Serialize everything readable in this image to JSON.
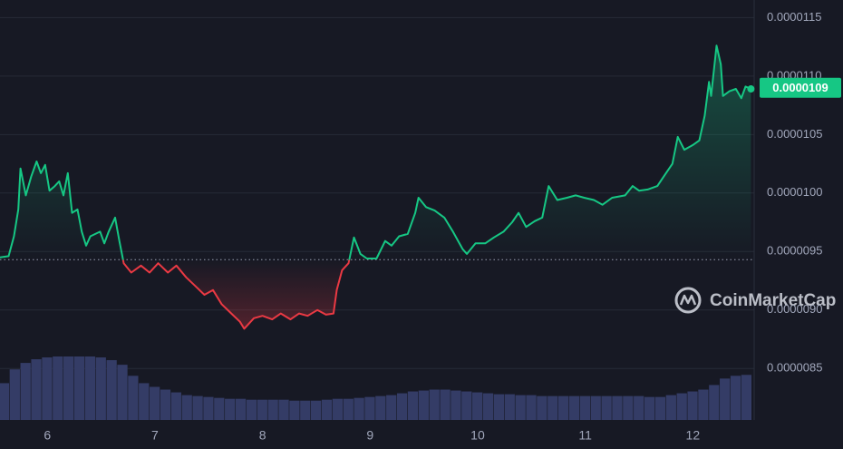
{
  "chart_data": {
    "type": "line",
    "x": [
      5.56,
      5.64,
      5.69,
      5.73,
      5.75,
      5.8,
      5.85,
      5.9,
      5.94,
      5.98,
      6.02,
      6.07,
      6.11,
      6.15,
      6.19,
      6.23,
      6.28,
      6.32,
      6.36,
      6.4,
      6.49,
      6.53,
      6.57,
      6.63,
      6.67,
      6.71,
      6.78,
      6.87,
      6.95,
      7.03,
      7.12,
      7.2,
      7.29,
      7.37,
      7.46,
      7.54,
      7.62,
      7.71,
      7.79,
      7.83,
      7.92,
      8.0,
      8.09,
      8.17,
      8.26,
      8.34,
      8.42,
      8.51,
      8.59,
      8.66,
      8.69,
      8.74,
      8.8,
      8.85,
      8.91,
      8.97,
      9.06,
      9.14,
      9.2,
      9.27,
      9.35,
      9.42,
      9.45,
      9.52,
      9.6,
      9.69,
      9.77,
      9.86,
      9.9,
      9.98,
      10.07,
      10.15,
      10.24,
      10.32,
      10.38,
      10.45,
      10.53,
      10.6,
      10.66,
      10.74,
      10.83,
      10.91,
      10.99,
      11.08,
      11.16,
      11.25,
      11.37,
      11.44,
      11.5,
      11.58,
      11.67,
      11.75,
      11.81,
      11.86,
      11.92,
      12.0,
      12.06,
      12.11,
      12.15,
      12.17,
      12.22,
      12.26,
      12.28,
      12.34,
      12.4,
      12.45,
      12.49,
      12.54
    ],
    "values": [
      9.45e-06,
      9.46e-06,
      9.63e-06,
      9.86e-06,
      1.021e-05,
      9.98e-06,
      1.014e-05,
      1.027e-05,
      1.017e-05,
      1.024e-05,
      1.002e-05,
      1.006e-05,
      1.01e-05,
      9.98e-06,
      1.017e-05,
      9.83e-06,
      9.86e-06,
      9.67e-06,
      9.55e-06,
      9.63e-06,
      9.67e-06,
      9.57e-06,
      9.67e-06,
      9.79e-06,
      9.59e-06,
      9.4e-06,
      9.32e-06,
      9.38e-06,
      9.32e-06,
      9.4e-06,
      9.32e-06,
      9.38e-06,
      9.28e-06,
      9.21e-06,
      9.13e-06,
      9.17e-06,
      9.05e-06,
      8.97e-06,
      8.9e-06,
      8.84e-06,
      8.93e-06,
      8.95e-06,
      8.92e-06,
      8.97e-06,
      8.92e-06,
      8.97e-06,
      8.95e-06,
      9e-06,
      8.96e-06,
      8.97e-06,
      9.17e-06,
      9.34e-06,
      9.4e-06,
      9.62e-06,
      9.48e-06,
      9.44e-06,
      9.44e-06,
      9.59e-06,
      9.55e-06,
      9.63e-06,
      9.65e-06,
      9.83e-06,
      9.96e-06,
      9.88e-06,
      9.85e-06,
      9.79e-06,
      9.67e-06,
      9.52e-06,
      9.48e-06,
      9.57e-06,
      9.57e-06,
      9.62e-06,
      9.67e-06,
      9.75e-06,
      9.83e-06,
      9.71e-06,
      9.76e-06,
      9.79e-06,
      1.006e-05,
      9.94e-06,
      9.96e-06,
      9.98e-06,
      9.96e-06,
      9.94e-06,
      9.9e-06,
      9.96e-06,
      9.98e-06,
      1.006e-05,
      1.002e-05,
      1.003e-05,
      1.006e-05,
      1.017e-05,
      1.025e-05,
      1.048e-05,
      1.037e-05,
      1.041e-05,
      1.045e-05,
      1.066e-05,
      1.095e-05,
      1.083e-05,
      1.126e-05,
      1.11e-05,
      1.083e-05,
      1.087e-05,
      1.089e-05,
      1.081e-05,
      1.091e-05,
      1.089e-05
    ],
    "up_color": "#16c784",
    "down_color": "#ea3943",
    "baseline": 9.43e-06,
    "xlim": [
      5.56,
      12.57
    ],
    "xticks": [
      6,
      7,
      8,
      9,
      10,
      11,
      12
    ],
    "ylim": [
      8.06e-06,
      1.165e-05
    ],
    "yticks": [
      8.5e-06,
      {
        "value": 9e-06,
        "label": "0.0000090"
      },
      9.5e-06,
      {
        "value": 1e-05,
        "label": "0.0000100"
      },
      1.05e-05,
      {
        "value": 1.1e-05,
        "label": "0.0000110"
      },
      1.15e-05
    ],
    "grid": true,
    "price_label": {
      "value": 1.09e-05,
      "label": "0.0000109"
    },
    "volume": {
      "color": "#343c66",
      "x": [
        5.6,
        5.7,
        5.8,
        5.9,
        6.0,
        6.1,
        6.2,
        6.3,
        6.4,
        6.5,
        6.6,
        6.7,
        6.8,
        6.9,
        7.0,
        7.1,
        7.2,
        7.3,
        7.4,
        7.5,
        7.6,
        7.7,
        7.8,
        7.9,
        8.0,
        8.1,
        8.2,
        8.3,
        8.4,
        8.5,
        8.6,
        8.7,
        8.8,
        8.9,
        9.0,
        9.1,
        9.2,
        9.3,
        9.4,
        9.5,
        9.6,
        9.7,
        9.8,
        9.9,
        10.0,
        10.1,
        10.2,
        10.3,
        10.4,
        10.5,
        10.6,
        10.7,
        10.8,
        10.9,
        11.0,
        11.1,
        11.2,
        11.3,
        11.4,
        11.5,
        11.6,
        11.7,
        11.8,
        11.9,
        12.0,
        12.1,
        12.2,
        12.3,
        12.4,
        12.5
      ],
      "values": [
        40,
        55,
        62,
        66,
        68,
        69,
        69,
        69,
        69,
        68,
        65,
        60,
        48,
        40,
        36,
        33,
        30,
        27,
        26,
        25,
        24,
        23,
        23,
        22,
        22,
        22,
        22,
        21,
        21,
        21,
        22,
        23,
        23,
        24,
        25,
        26,
        27,
        29,
        31,
        32,
        33,
        33,
        32,
        31,
        30,
        29,
        28,
        28,
        27,
        27,
        26,
        26,
        26,
        26,
        26,
        26,
        26,
        26,
        26,
        26,
        25,
        25,
        27,
        29,
        31,
        33,
        38,
        45,
        48,
        49
      ]
    },
    "watermark": "CoinMarketCap"
  }
}
